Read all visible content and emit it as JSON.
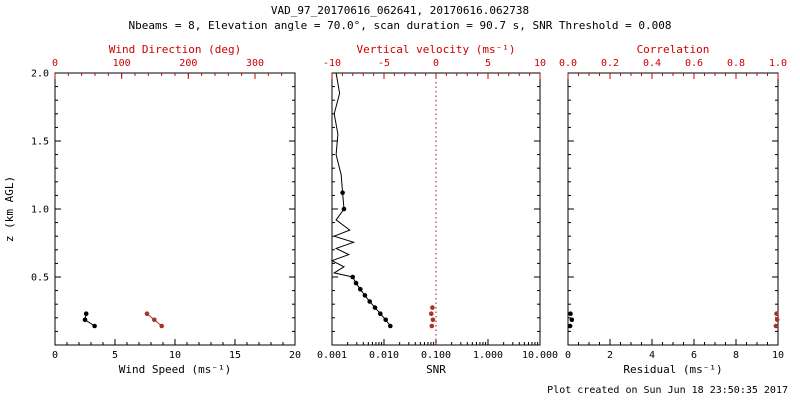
{
  "header": {
    "title": "VAD_97_20170616_062641, 20170616.062738",
    "subtitle": "Nbeams = 8, Elevation angle = 70.0°, scan duration = 90.7 s, SNR Threshold = 0.008"
  },
  "footer": {
    "stamp": "Plot created on Sun Jun 18 23:50:35 2017"
  },
  "colors": {
    "axis_black": "#000000",
    "axis_red": "#cc0000",
    "marker_black": "#000000",
    "marker_red": "#a93226",
    "refline_red": "#cc0000"
  },
  "chart_data": [
    {
      "type": "scatter",
      "name": "wind",
      "y_axis": {
        "label": "z (km AGL)",
        "lim": [
          0,
          2
        ],
        "ticks": [
          0,
          0.5,
          1.0,
          1.5,
          2.0
        ],
        "tick_labels": [
          "",
          "0.5",
          "1.0",
          "1.5",
          "2.0"
        ],
        "minor_step": 0.1,
        "show_labels": true
      },
      "bottom_axis": {
        "label": "Wind Speed (ms⁻¹)",
        "lim": [
          0,
          20
        ],
        "ticks": [
          0,
          5,
          10,
          15,
          20
        ],
        "tick_labels": [
          "0",
          "5",
          "10",
          "15",
          "20"
        ],
        "minor_step": 1,
        "color": "#000000"
      },
      "top_axis": {
        "label": "Wind Direction (deg)",
        "lim": [
          0,
          360
        ],
        "ticks": [
          0,
          100,
          200,
          300
        ],
        "tick_labels": [
          "0",
          "100",
          "200",
          "300"
        ],
        "minor_step": 20,
        "color": "#cc0000"
      },
      "series": [
        {
          "name": "wind-speed",
          "axis": "bottom",
          "color": "#000000",
          "marker": true,
          "line": true,
          "points": [
            [
              2.6,
              0.23
            ],
            [
              2.5,
              0.185
            ],
            [
              3.3,
              0.14
            ]
          ]
        },
        {
          "name": "wind-direction",
          "axis": "top",
          "color": "#a93226",
          "marker": true,
          "line": true,
          "points": [
            [
              138,
              0.23
            ],
            [
              149,
              0.185
            ],
            [
              160,
              0.14
            ]
          ]
        }
      ]
    },
    {
      "type": "line-scatter",
      "name": "snr",
      "y_axis": {
        "label": "",
        "lim": [
          0,
          2
        ],
        "ticks": [
          0,
          0.5,
          1.0,
          1.5,
          2.0
        ],
        "tick_labels": [
          "",
          "",
          "",
          "",
          ""
        ],
        "minor_step": 0.1,
        "show_labels": false
      },
      "bottom_axis": {
        "label": "SNR",
        "lim": [
          0.001,
          10
        ],
        "scale": "log",
        "ticks": [
          0.001,
          0.01,
          0.1,
          1,
          10
        ],
        "tick_labels": [
          "0.001",
          "0.010",
          "0.100",
          "1.000",
          "10.000"
        ],
        "color": "#000000"
      },
      "top_axis": {
        "label": "Vertical velocity (ms⁻¹)",
        "lim": [
          -10,
          10
        ],
        "ticks": [
          -10,
          -5,
          0,
          5,
          10
        ],
        "tick_labels": [
          "-10",
          "-5",
          "0",
          "5",
          "10"
        ],
        "minor_step": 1,
        "color": "#cc0000"
      },
      "refline": {
        "axis": "top",
        "value": 0,
        "color": "#cc0000",
        "style": "dotted"
      },
      "series": [
        {
          "name": "snr-profile-line",
          "axis": "bottom",
          "color": "#000000",
          "marker": false,
          "line": true,
          "points": [
            [
              0.0012,
              2.0
            ],
            [
              0.0014,
              1.85
            ],
            [
              0.0011,
              1.7
            ],
            [
              0.0013,
              1.55
            ],
            [
              0.0012,
              1.4
            ],
            [
              0.0015,
              1.25
            ],
            [
              0.0016,
              1.12
            ],
            [
              0.0017,
              1.0
            ],
            [
              0.0012,
              0.92
            ],
            [
              0.0022,
              0.845
            ],
            [
              0.0011,
              0.8
            ],
            [
              0.0026,
              0.755
            ],
            [
              0.0012,
              0.71
            ],
            [
              0.0021,
              0.665
            ],
            [
              0.001,
              0.62
            ],
            [
              0.0017,
              0.575
            ],
            [
              0.0011,
              0.53
            ],
            [
              0.0025,
              0.5
            ]
          ]
        },
        {
          "name": "snr-points",
          "axis": "bottom",
          "color": "#000000",
          "marker": true,
          "line": true,
          "points": [
            [
              0.0025,
              0.5
            ],
            [
              0.0029,
              0.455
            ],
            [
              0.0035,
              0.41
            ],
            [
              0.0043,
              0.365
            ],
            [
              0.0053,
              0.32
            ],
            [
              0.0067,
              0.275
            ],
            [
              0.0085,
              0.23
            ],
            [
              0.0108,
              0.185
            ],
            [
              0.0132,
              0.14
            ]
          ]
        },
        {
          "name": "snr-upper-points",
          "axis": "bottom",
          "color": "#000000",
          "marker": true,
          "line": false,
          "points": [
            [
              0.0016,
              1.12
            ],
            [
              0.0017,
              1.0
            ]
          ]
        },
        {
          "name": "vertical-velocity",
          "axis": "top",
          "color": "#a93226",
          "marker": true,
          "line": false,
          "points": [
            [
              -0.35,
              0.275
            ],
            [
              -0.45,
              0.23
            ],
            [
              -0.3,
              0.185
            ],
            [
              -0.4,
              0.14
            ]
          ]
        }
      ]
    },
    {
      "type": "scatter",
      "name": "residual",
      "y_axis": {
        "label": "",
        "lim": [
          0,
          2
        ],
        "ticks": [
          0,
          0.5,
          1.0,
          1.5,
          2.0
        ],
        "tick_labels": [
          "",
          "",
          "",
          "",
          ""
        ],
        "minor_step": 0.1,
        "show_labels": false
      },
      "bottom_axis": {
        "label": "Residual (ms⁻¹)",
        "lim": [
          0,
          10
        ],
        "ticks": [
          0,
          2,
          4,
          6,
          8,
          10
        ],
        "tick_labels": [
          "0",
          "2",
          "4",
          "6",
          "8",
          "10"
        ],
        "minor_step": 0.5,
        "color": "#000000"
      },
      "top_axis": {
        "label": "Correlation",
        "lim": [
          0,
          1
        ],
        "ticks": [
          0,
          0.2,
          0.4,
          0.6,
          0.8,
          1.0
        ],
        "tick_labels": [
          "0.0",
          "0.2",
          "0.4",
          "0.6",
          "0.8",
          "1.0"
        ],
        "minor_step": 0.05,
        "color": "#cc0000"
      },
      "series": [
        {
          "name": "residual",
          "axis": "bottom",
          "color": "#000000",
          "marker": true,
          "line": false,
          "points": [
            [
              0.12,
              0.23
            ],
            [
              0.18,
              0.185
            ],
            [
              0.1,
              0.14
            ]
          ]
        },
        {
          "name": "correlation",
          "axis": "top",
          "color": "#a93226",
          "marker": true,
          "line": false,
          "points": [
            [
              0.993,
              0.23
            ],
            [
              0.996,
              0.185
            ],
            [
              0.99,
              0.14
            ]
          ]
        }
      ]
    }
  ]
}
